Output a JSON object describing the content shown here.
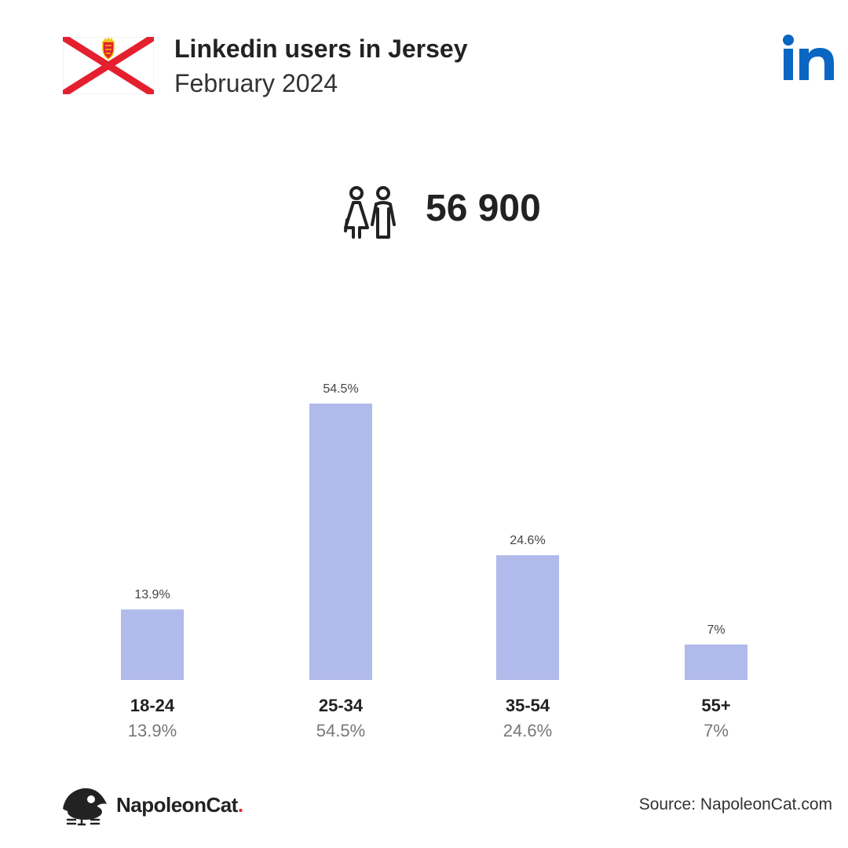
{
  "header": {
    "title": "Linkedin users in Jersey",
    "subtitle": "February 2024",
    "flag_icon": "jersey-flag-icon",
    "logo_icon": "linkedin-logo-icon",
    "logo_text": "in"
  },
  "total": {
    "icon": "people-icon",
    "value": "56 900"
  },
  "colors": {
    "bar": "#b0baeb",
    "text_dark": "#222222",
    "text_light": "#555555",
    "linkedin_blue": "#0a66c2",
    "flag_red": "#e4202e",
    "brand_dot": "#e8262b"
  },
  "chart_data": {
    "type": "bar",
    "categories": [
      "18-24",
      "25-34",
      "35-54",
      "55+"
    ],
    "values": [
      13.9,
      54.5,
      24.6,
      7
    ],
    "data_labels": [
      "13.9%",
      "54.5%",
      "24.6%",
      "7%"
    ],
    "sub_labels": [
      "13.9%",
      "54.5%",
      "24.6%",
      "7%"
    ],
    "unit": "%",
    "ylim": [
      0,
      54.5
    ],
    "grid": false
  },
  "footer": {
    "brand_prefix": "NapoleonCat",
    "brand_dot": ".",
    "brand_icon": "napoleoncat-logo-icon",
    "source": "Source: NapoleonCat.com"
  }
}
